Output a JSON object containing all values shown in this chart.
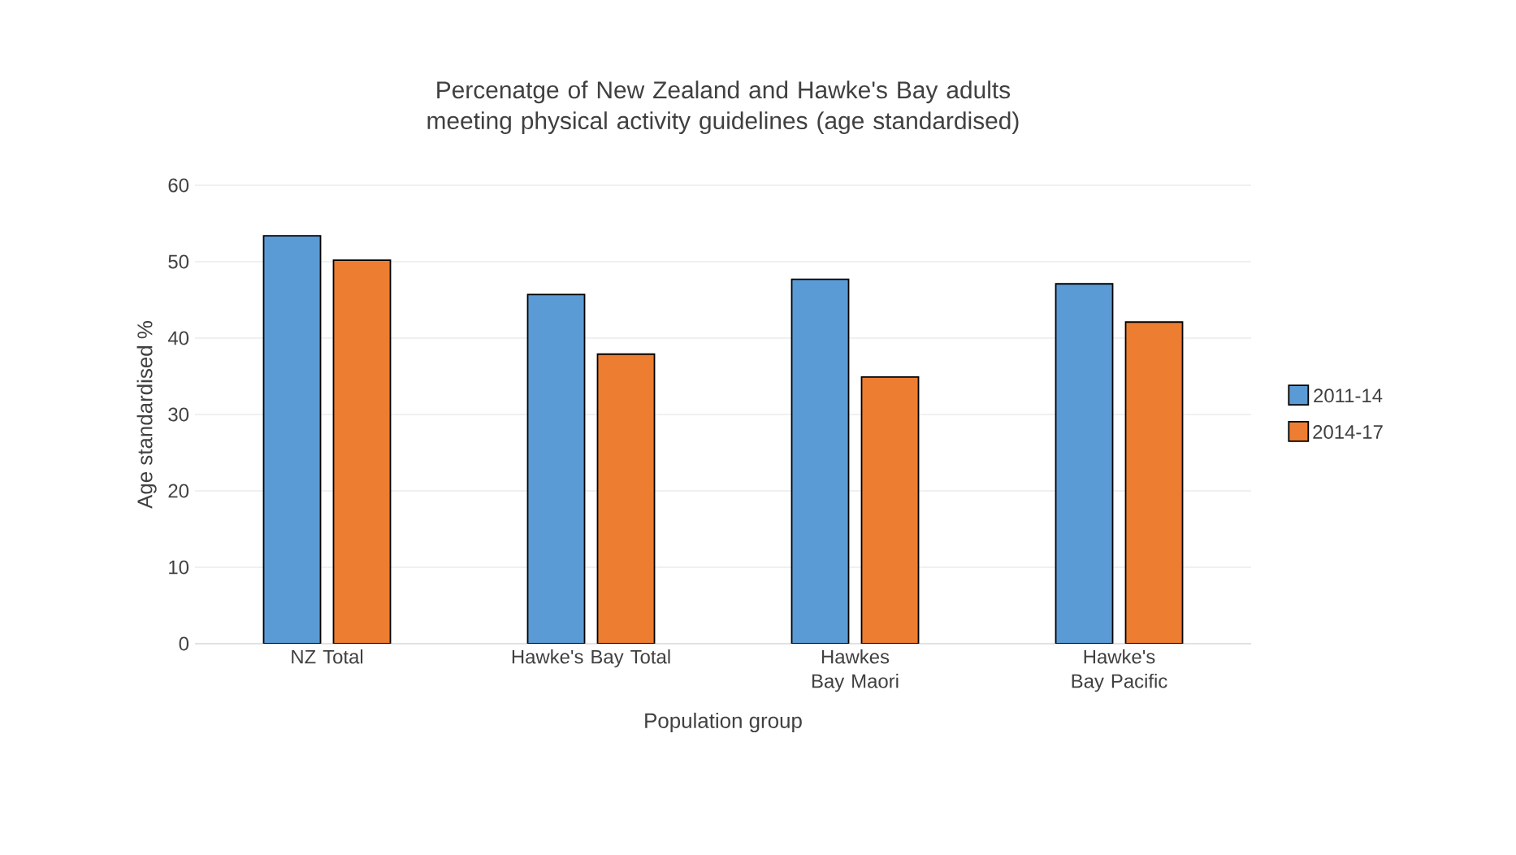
{
  "chart_data": {
    "type": "bar",
    "title": "Percenatge of New Zealand and Hawke's Bay adults meeting physical activity guidelines  (age standardised)",
    "xlabel": "Population group",
    "ylabel": "Age standardised %",
    "categories": [
      "NZ Total",
      "Hawke's Bay Total",
      "Hawkes Bay Maori",
      "Hawke's Bay Pacific"
    ],
    "series": [
      {
        "name": "2011-14",
        "color": "#5b9bd5",
        "values": [
          53.4,
          45.7,
          47.7,
          47.1
        ]
      },
      {
        "name": "2014-17",
        "color": "#ed7d31",
        "values": [
          50.2,
          37.9,
          34.9,
          42.1
        ]
      }
    ],
    "ylim": [
      0,
      60
    ],
    "yticks": [
      0,
      10,
      20,
      30,
      40,
      50,
      60
    ],
    "grid": "y",
    "legend": "right"
  }
}
